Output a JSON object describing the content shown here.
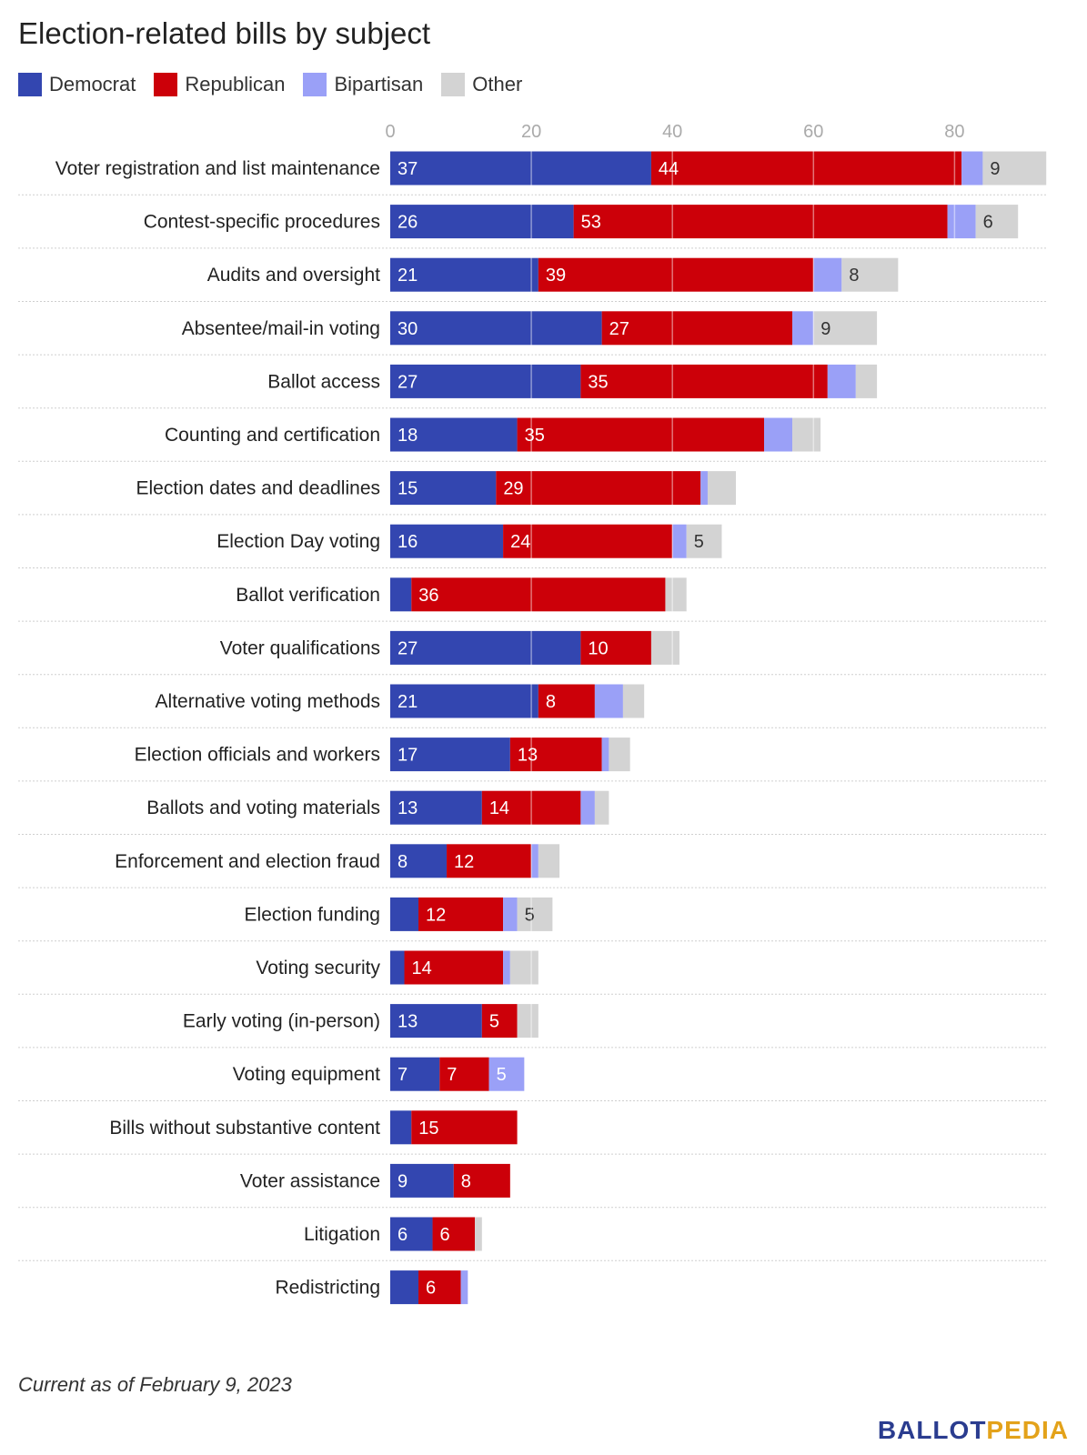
{
  "title": "Election-related bills by subject",
  "footnote": "Current as of February 9, 2023",
  "logo": {
    "part1": "BALLOT",
    "part2": "PEDIA"
  },
  "legend": [
    {
      "name": "Democrat",
      "color": "#3346b0"
    },
    {
      "name": "Republican",
      "color": "#cc0009"
    },
    {
      "name": "Bipartisan",
      "color": "#9aa0f7"
    },
    {
      "name": "Other",
      "color": "#d3d3d3"
    }
  ],
  "chart_data": {
    "type": "bar",
    "orientation": "horizontal",
    "stacked": true,
    "title": "Election-related bills by subject",
    "x_ticks": [
      0,
      20,
      40,
      60,
      80
    ],
    "xlim": [
      0,
      93
    ],
    "grid": true,
    "legend_position": "top-left",
    "categories": [
      "Voter registration and list maintenance",
      "Contest-specific procedures",
      "Audits and oversight",
      "Absentee/mail-in voting",
      "Ballot access",
      "Counting and certification",
      "Election dates and deadlines",
      "Election Day voting",
      "Ballot verification",
      "Voter qualifications",
      "Alternative voting methods",
      "Election officials and workers",
      "Ballots and voting materials",
      "Enforcement and election fraud",
      "Election funding",
      "Voting security",
      "Early voting (in-person)",
      "Voting equipment",
      "Bills without substantive content",
      "Voter assistance",
      "Litigation",
      "Redistricting"
    ],
    "series": [
      {
        "name": "Democrat",
        "color": "#3346b0",
        "values": [
          37,
          26,
          21,
          30,
          27,
          18,
          15,
          16,
          3,
          27,
          21,
          17,
          13,
          8,
          4,
          2,
          13,
          7,
          3,
          9,
          6,
          4
        ],
        "labels": [
          "37",
          "26",
          "21",
          "30",
          "27",
          "18",
          "15",
          "16",
          "",
          "27",
          "21",
          "17",
          "13",
          "8",
          "",
          "",
          "13",
          "7",
          "",
          "9",
          "6",
          ""
        ]
      },
      {
        "name": "Republican",
        "color": "#cc0009",
        "values": [
          44,
          53,
          39,
          27,
          35,
          35,
          29,
          24,
          36,
          10,
          8,
          13,
          14,
          12,
          12,
          14,
          5,
          7,
          15,
          8,
          6,
          6
        ],
        "labels": [
          "44",
          "53",
          "39",
          "27",
          "35",
          "35",
          "29",
          "24",
          "36",
          "10",
          "8",
          "13",
          "14",
          "12",
          "12",
          "14",
          "5",
          "7",
          "15",
          "8",
          "6",
          "6"
        ]
      },
      {
        "name": "Bipartisan",
        "color": "#9aa0f7",
        "values": [
          3,
          4,
          4,
          3,
          4,
          4,
          1,
          2,
          0,
          0,
          4,
          1,
          2,
          1,
          2,
          1,
          0,
          5,
          0,
          0,
          0,
          1
        ],
        "labels": [
          "",
          "",
          "",
          "",
          "",
          "",
          "",
          "",
          "",
          "",
          "",
          "",
          "",
          "",
          "",
          "",
          "",
          "5",
          "",
          "",
          "",
          ""
        ]
      },
      {
        "name": "Other",
        "color": "#d3d3d3",
        "values": [
          9,
          6,
          8,
          9,
          3,
          4,
          4,
          5,
          3,
          4,
          3,
          3,
          2,
          3,
          5,
          4,
          3,
          0,
          0,
          0,
          1,
          0
        ],
        "labels": [
          "9",
          "6",
          "8",
          "9",
          "",
          "",
          "",
          "5",
          "",
          "",
          "",
          "",
          "",
          "",
          "5",
          "",
          "",
          "",
          "",
          "",
          "",
          ""
        ]
      }
    ]
  }
}
